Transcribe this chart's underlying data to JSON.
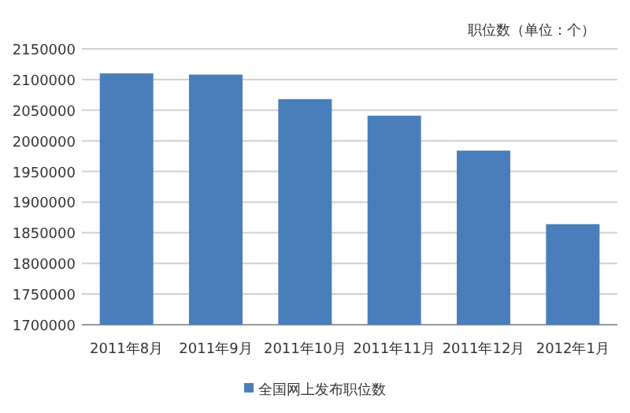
{
  "chart_data": {
    "type": "bar",
    "ylabel": "职位数（单位：个）",
    "categories": [
      "2011年8月",
      "2011年9月",
      "2011年10月",
      "2011年11月",
      "2011年12月",
      "2012年1月"
    ],
    "series": [
      {
        "name": "全国网上发布职位数",
        "color": "#4a7ebb",
        "values": [
          2110000,
          2108000,
          2068000,
          2041000,
          1984000,
          1864000
        ]
      }
    ],
    "ylim": [
      1700000,
      2150000
    ],
    "yticks": [
      1700000,
      1750000,
      1800000,
      1850000,
      1900000,
      1950000,
      2000000,
      2050000,
      2100000,
      2150000
    ],
    "grid": "y",
    "legend": "bottom"
  }
}
